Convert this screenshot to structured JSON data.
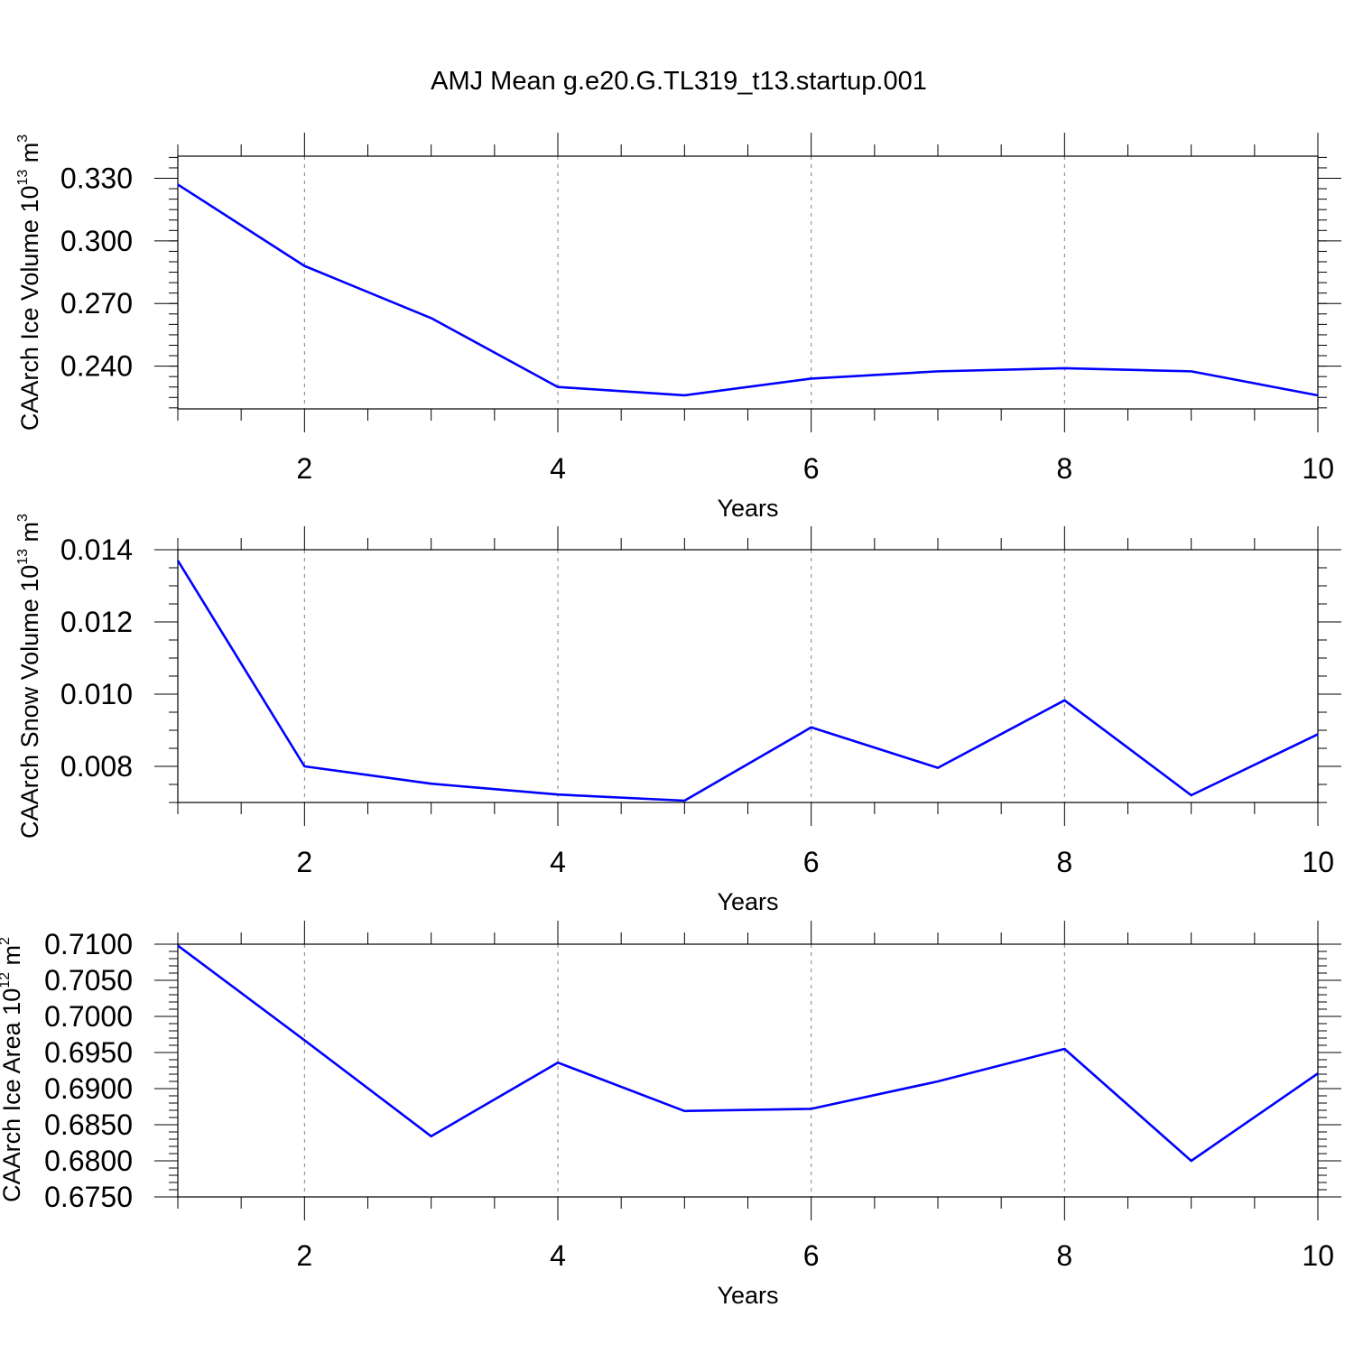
{
  "title": "AMJ Mean g.e20.G.TL319_t13.startup.001",
  "colors": {
    "line": "#0000ff",
    "axis": "#000000",
    "grid": "#808080"
  },
  "chart_data": [
    {
      "type": "line",
      "title": "AMJ Mean g.e20.G.TL319_t13.startup.001",
      "xlabel": "Years",
      "ylabel": {
        "main": "CAArch Ice Volume 10",
        "exp": "13",
        "unit": " m",
        "unit_exp": "3"
      },
      "xlim": [
        1,
        10
      ],
      "ylim": [
        0.2195,
        0.3406
      ],
      "x_ticks": [
        2,
        4,
        6,
        8,
        10
      ],
      "x_tick_labels": [
        "2",
        "4",
        "6",
        "8",
        "10"
      ],
      "y_ticks": [
        0.24,
        0.27,
        0.3,
        0.33
      ],
      "y_tick_labels": [
        "0.240",
        "0.270",
        "0.300",
        "0.330"
      ],
      "grid": "x-dashed",
      "series": [
        {
          "name": "CAArch Ice Volume",
          "x": [
            1,
            2,
            3,
            4,
            5,
            6,
            7,
            8,
            9,
            10
          ],
          "values": [
            0.327,
            0.288,
            0.263,
            0.23,
            0.226,
            0.234,
            0.2375,
            0.239,
            0.2375,
            0.226
          ]
        }
      ]
    },
    {
      "type": "line",
      "xlabel": "Years",
      "ylabel": {
        "main": "CAArch Snow Volume 10",
        "exp": "13",
        "unit": " m",
        "unit_exp": "3"
      },
      "xlim": [
        1,
        10
      ],
      "ylim": [
        0.007,
        0.014
      ],
      "x_ticks": [
        2,
        4,
        6,
        8,
        10
      ],
      "x_tick_labels": [
        "2",
        "4",
        "6",
        "8",
        "10"
      ],
      "y_ticks": [
        0.008,
        0.01,
        0.012,
        0.014
      ],
      "y_tick_labels": [
        "0.008",
        "0.010",
        "0.012",
        "0.014"
      ],
      "grid": "x-dashed",
      "series": [
        {
          "name": "CAArch Snow Volume",
          "x": [
            1,
            2,
            3,
            4,
            5,
            6,
            7,
            8,
            9,
            10
          ],
          "values": [
            0.0137,
            0.008,
            0.00752,
            0.00722,
            0.00705,
            0.00908,
            0.00796,
            0.00983,
            0.0072,
            0.00889
          ]
        }
      ]
    },
    {
      "type": "line",
      "xlabel": "Years",
      "ylabel": {
        "main": "CAArch Ice Area 10",
        "exp": "12",
        "unit": " m",
        "unit_exp": "2"
      },
      "xlim": [
        1,
        10
      ],
      "ylim": [
        0.675,
        0.71
      ],
      "x_ticks": [
        2,
        4,
        6,
        8,
        10
      ],
      "x_tick_labels": [
        "2",
        "4",
        "6",
        "8",
        "10"
      ],
      "y_ticks": [
        0.675,
        0.68,
        0.685,
        0.69,
        0.695,
        0.7,
        0.705,
        0.71
      ],
      "y_tick_labels": [
        "0.6750",
        "0.6800",
        "0.6850",
        "0.6900",
        "0.6950",
        "0.7000",
        "0.7050",
        "0.7100"
      ],
      "grid": "x-dashed",
      "series": [
        {
          "name": "CAArch Ice Area",
          "x": [
            1,
            2,
            3,
            4,
            5,
            6,
            7,
            8,
            9,
            10
          ],
          "values": [
            0.7098,
            0.6967,
            0.6834,
            0.6936,
            0.6869,
            0.6872,
            0.691,
            0.6955,
            0.68,
            0.6921
          ]
        }
      ]
    }
  ]
}
